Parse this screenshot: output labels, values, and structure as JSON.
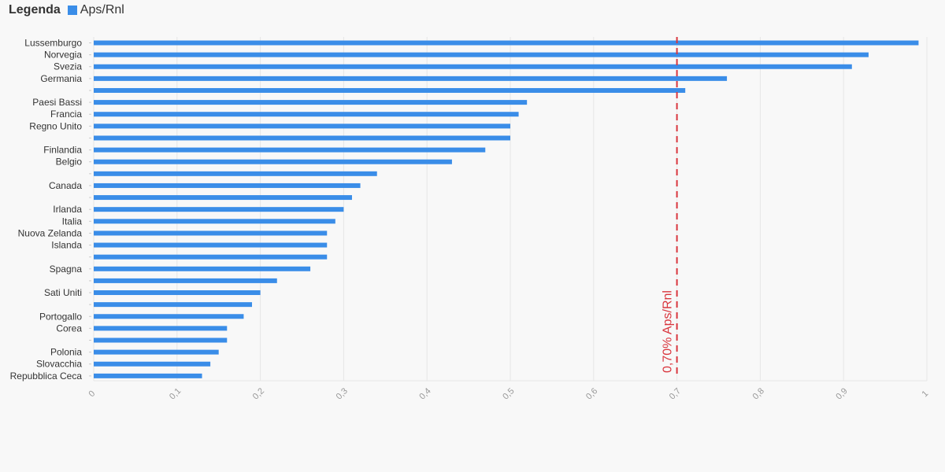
{
  "legend": {
    "title": "Legenda",
    "series_label": "Aps/Rnl"
  },
  "colors": {
    "bar": "#3a8de8",
    "reference_line": "#d9363e",
    "grid": "#e6e6e6",
    "axis_text": "#999999",
    "label_text": "#333333",
    "background": "#f8f8f8"
  },
  "chart_data": {
    "type": "bar",
    "orientation": "horizontal",
    "categories": [
      "Lussemburgo",
      "Norvegia",
      "Svezia",
      "Germania",
      "",
      "Paesi Bassi",
      "Francia",
      "Regno Unito",
      "",
      "Finlandia",
      "Belgio",
      "",
      "Canada",
      "",
      "Irlanda",
      "Italia",
      "Nuova Zelanda",
      "Islanda",
      "",
      "Spagna",
      "",
      "Sati Uniti",
      "",
      "Portogallo",
      "Corea",
      "",
      "Polonia",
      "Slovacchia",
      "Repubblica Ceca"
    ],
    "series": [
      {
        "name": "Aps/Rnl",
        "values": [
          0.99,
          0.93,
          0.91,
          0.76,
          0.71,
          0.52,
          0.51,
          0.5,
          0.5,
          0.47,
          0.43,
          0.34,
          0.32,
          0.31,
          0.3,
          0.29,
          0.28,
          0.28,
          0.28,
          0.26,
          0.22,
          0.2,
          0.19,
          0.18,
          0.16,
          0.16,
          0.15,
          0.14,
          0.13
        ]
      }
    ],
    "x_ticks": [
      "0",
      "0,1",
      "0,2",
      "0,3",
      "0,4",
      "0,5",
      "0,6",
      "0,7",
      "0,8",
      "0,9",
      "1"
    ],
    "xlim": [
      0,
      1
    ],
    "grid": true,
    "legend_position": "top-left",
    "reference_line": {
      "value": 0.7,
      "label": "0,70% Aps/Rnl"
    }
  }
}
